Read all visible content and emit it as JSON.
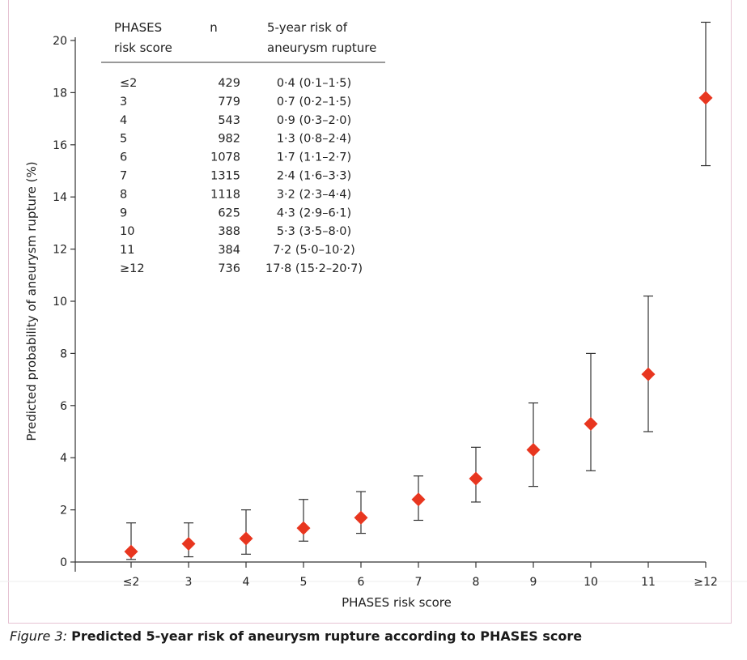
{
  "chart_data": {
    "type": "scatter",
    "title": "",
    "xlabel": "PHASES risk score",
    "ylabel": "Predicted probability of aneurysm rupture (%)",
    "ylim": [
      0,
      20
    ],
    "yticks": [
      0,
      2,
      4,
      6,
      8,
      10,
      12,
      14,
      16,
      18,
      20
    ],
    "categories": [
      "≤2",
      "3",
      "4",
      "5",
      "6",
      "7",
      "8",
      "9",
      "10",
      "11",
      "≥12"
    ],
    "values": [
      0.4,
      0.7,
      0.9,
      1.3,
      1.7,
      2.4,
      3.2,
      4.3,
      5.3,
      7.2,
      17.8
    ],
    "ci_low": [
      0.1,
      0.2,
      0.3,
      0.8,
      1.1,
      1.6,
      2.3,
      2.9,
      3.5,
      5.0,
      15.2
    ],
    "ci_high": [
      1.5,
      1.5,
      2.0,
      2.4,
      2.7,
      3.3,
      4.4,
      6.1,
      8.0,
      10.2,
      20.7
    ],
    "marker_color": "#e8361f",
    "table": {
      "headers": {
        "score_line1": "PHASES",
        "score_line2": "risk score",
        "n": "n",
        "risk_line1": "5-year risk of",
        "risk_line2": "aneurysm rupture"
      },
      "rows": [
        {
          "score": "≤2",
          "n": "429",
          "risk": "0·4 (0·1–1·5)"
        },
        {
          "score": "3",
          "n": "779",
          "risk": "0·7 (0·2–1·5)"
        },
        {
          "score": "4",
          "n": "543",
          "risk": "0·9 (0·3–2·0)"
        },
        {
          "score": "5",
          "n": "982",
          "risk": "1·3 (0·8–2·4)"
        },
        {
          "score": "6",
          "n": "1078",
          "risk": "1·7 (1·1–2·7)"
        },
        {
          "score": "7",
          "n": "1315",
          "risk": "2·4 (1·6–3·3)"
        },
        {
          "score": "8",
          "n": "1118",
          "risk": "3·2 (2·3–4·4)"
        },
        {
          "score": "9",
          "n": "625",
          "risk": "4·3 (2·9–6·1)"
        },
        {
          "score": "10",
          "n": "388",
          "risk": "5·3 (3·5–8·0)"
        },
        {
          "score": "11",
          "n": "384",
          "risk": "7·2 (5·0–10·2)"
        },
        {
          "score": "≥12",
          "n": "736",
          "risk": "17·8 (15·2–20·7)"
        }
      ]
    }
  },
  "caption": {
    "label": "Figure 3:",
    "text": "Predicted 5-year risk of aneurysm rupture according to PHASES score"
  }
}
